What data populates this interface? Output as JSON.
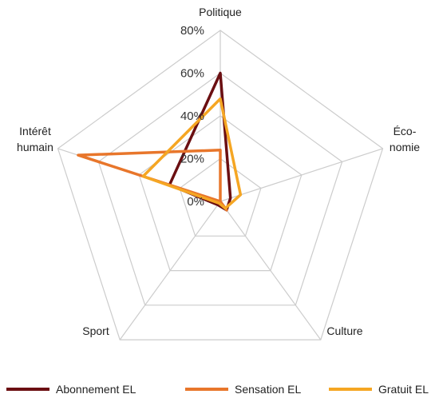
{
  "chart_data": {
    "type": "radar",
    "title": "",
    "categories": [
      [
        "Politique"
      ],
      [
        "Éco-",
        "nomie"
      ],
      [
        "Culture"
      ],
      [
        "Sport"
      ],
      [
        "Intérêt",
        "humain"
      ]
    ],
    "rlim": [
      0,
      80
    ],
    "ticks": [
      "0%",
      "20%",
      "40%",
      "60%",
      "80%"
    ],
    "tick_values": [
      0,
      20,
      40,
      60,
      80
    ],
    "series": [
      {
        "name": "Abonnement EL",
        "color": "#6b0f12",
        "values": [
          60,
          5,
          5,
          2,
          25
        ]
      },
      {
        "name": "Sensation EL",
        "color": "#e8762b",
        "values": [
          24,
          0,
          5,
          0,
          70
        ]
      },
      {
        "name": "Gratuit EL",
        "color": "#f5a623",
        "values": [
          48,
          10,
          4,
          1,
          38
        ]
      }
    ],
    "grid_color": "#cccccc",
    "legend_position": "bottom"
  }
}
